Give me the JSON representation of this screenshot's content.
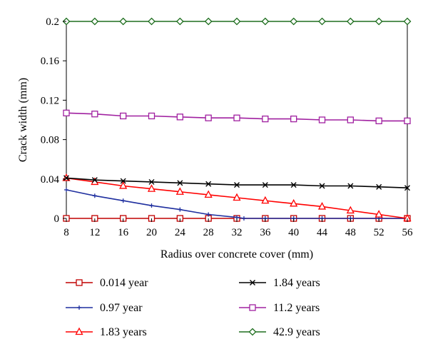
{
  "chart_data": {
    "type": "line",
    "title": "",
    "xlabel": "Radius over concrete cover (mm)",
    "ylabel": "Crack width (mm)",
    "xlim": [
      8,
      56
    ],
    "ylim": [
      0,
      0.2
    ],
    "xticks": [
      "8",
      "12",
      "16",
      "20",
      "24",
      "28",
      "32",
      "36",
      "40",
      "44",
      "48",
      "52",
      "56"
    ],
    "yticks": [
      "0",
      "0.04",
      "0.08",
      "0.12",
      "0.16",
      "0.2"
    ],
    "grid": false,
    "legend": "bottom, two columns",
    "series": [
      {
        "name": "0.014 year",
        "color": "#c00000",
        "marker": "square",
        "x": [
          8,
          12,
          16,
          20,
          24,
          28,
          32,
          36,
          40,
          44,
          48,
          52,
          56
        ],
        "y": [
          0,
          0,
          0,
          0,
          0,
          0,
          0,
          0,
          0,
          0,
          0,
          0,
          0
        ]
      },
      {
        "name": "0.97 year",
        "color": "#1f2f9f",
        "marker": "plus",
        "x": [
          8,
          12,
          16,
          20,
          24,
          28,
          32,
          33,
          36,
          40,
          44,
          48,
          52,
          56
        ],
        "y": [
          0.029,
          0.023,
          0.018,
          0.013,
          0.009,
          0.004,
          0.001,
          0,
          0,
          0,
          0,
          0,
          0,
          0
        ]
      },
      {
        "name": "1.83 years",
        "color": "#ff0000",
        "marker": "triangle",
        "x": [
          8,
          12,
          16,
          20,
          24,
          28,
          32,
          36,
          40,
          44,
          48,
          52,
          56
        ],
        "y": [
          0.041,
          0.037,
          0.033,
          0.03,
          0.027,
          0.024,
          0.021,
          0.018,
          0.015,
          0.012,
          0.008,
          0.004,
          0
        ]
      },
      {
        "name": "1.84 years",
        "color": "#000000",
        "marker": "x",
        "x": [
          8,
          12,
          16,
          20,
          24,
          28,
          32,
          36,
          40,
          44,
          48,
          52,
          56
        ],
        "y": [
          0.041,
          0.039,
          0.038,
          0.037,
          0.036,
          0.035,
          0.034,
          0.034,
          0.034,
          0.033,
          0.033,
          0.032,
          0.031
        ]
      },
      {
        "name": "11.2 years",
        "color": "#a020a0",
        "marker": "square",
        "x": [
          8,
          12,
          16,
          20,
          24,
          28,
          32,
          36,
          40,
          44,
          48,
          52,
          56
        ],
        "y": [
          0.107,
          0.106,
          0.104,
          0.104,
          0.103,
          0.102,
          0.102,
          0.101,
          0.101,
          0.1,
          0.1,
          0.099,
          0.099
        ]
      },
      {
        "name": "42.9 years",
        "color": "#1e6e1e",
        "marker": "diamond",
        "x": [
          8,
          12,
          16,
          20,
          24,
          28,
          32,
          36,
          40,
          44,
          48,
          52,
          56
        ],
        "y": [
          0.2,
          0.2,
          0.2,
          0.2,
          0.2,
          0.2,
          0.2,
          0.2,
          0.2,
          0.2,
          0.2,
          0.2,
          0.2
        ]
      }
    ]
  }
}
